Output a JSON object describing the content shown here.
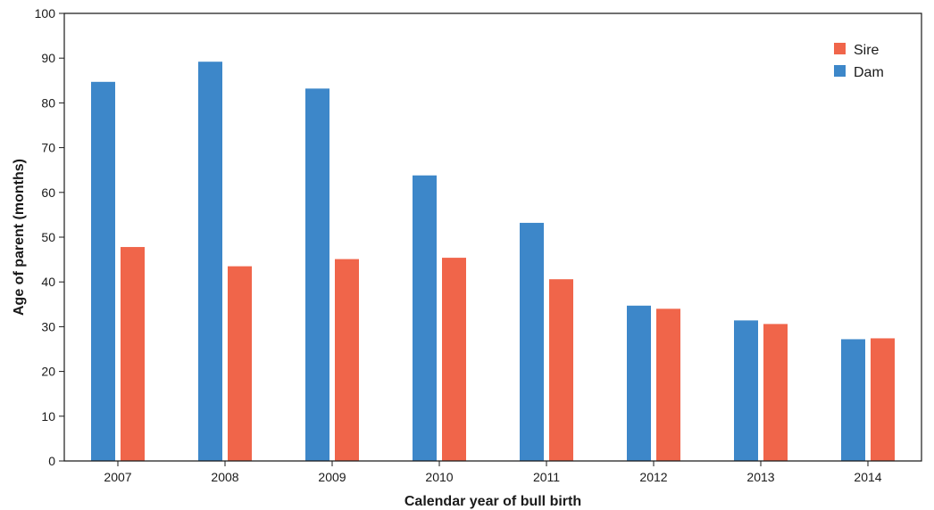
{
  "chart_data": {
    "type": "bar",
    "categories": [
      "2007",
      "2008",
      "2009",
      "2010",
      "2011",
      "2012",
      "2013",
      "2014"
    ],
    "series": [
      {
        "name": "Dam",
        "color": "#3d87c9",
        "values": [
          84.7,
          89.2,
          83.2,
          63.8,
          53.2,
          34.7,
          31.4,
          27.2
        ]
      },
      {
        "name": "Sire",
        "color": "#f0654a",
        "values": [
          47.8,
          43.5,
          45.1,
          45.4,
          40.6,
          34.0,
          30.6,
          27.4
        ]
      }
    ],
    "xlabel": "Calendar year of bull birth",
    "ylabel": "Age of parent (months)",
    "ylim": [
      0,
      100
    ],
    "yticks": [
      "0",
      "10",
      "20",
      "30",
      "40",
      "50",
      "60",
      "70",
      "80",
      "90",
      "100"
    ],
    "legend": {
      "placement": "top-right",
      "entries": [
        {
          "label": "Sire",
          "color": "#f0654a"
        },
        {
          "label": "Dam",
          "color": "#3d87c9"
        }
      ]
    },
    "grid": false
  }
}
